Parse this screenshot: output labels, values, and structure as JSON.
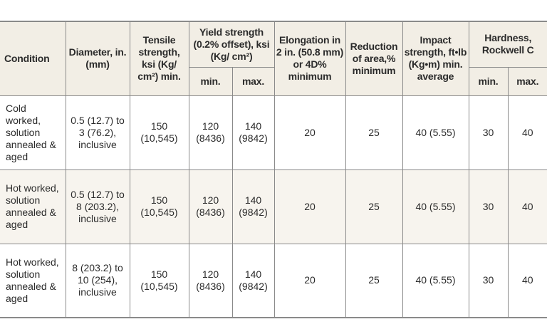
{
  "header": {
    "condition": "Condition",
    "diameter": "Diameter, in.(mm)",
    "tensile": "Tensile strength, ksi (Kg/ cm²) min.",
    "yield": "Yield strength (0.2% offset), ksi (Kg/ cm²)",
    "elongation": "Elongation in 2 in. (50.8 mm) or 4D% minimum",
    "reduction": "Reduction of area,% minimum",
    "impact": "Impact strength, ft•lb (Kg•m) min. average",
    "hardness": "Hardness, Rockwell C",
    "min": "min.",
    "max": "max."
  },
  "rows": [
    {
      "condition": "Cold worked, solution annealed & aged",
      "diameter": "0.5 (12.7) to 3 (76.2), inclusive",
      "tensile": "150 (10,545)",
      "yield_min": "120 (8436)",
      "yield_max": "140 (9842)",
      "elongation": "20",
      "reduction": "25",
      "impact": "40 (5.55)",
      "hard_min": "30",
      "hard_max": "40"
    },
    {
      "condition": "Hot worked, solution annealed & aged",
      "diameter": "0.5 (12.7) to 8 (203.2), inclusive",
      "tensile": "150 (10,545)",
      "yield_min": "120 (8436)",
      "yield_max": "140 (9842)",
      "elongation": "20",
      "reduction": "25",
      "impact": "40 (5.55)",
      "hard_min": "30",
      "hard_max": "40"
    },
    {
      "condition": "Hot worked, solution annealed & aged",
      "diameter": "8 (203.2) to 10 (254), inclusive",
      "tensile": "150 (10,545)",
      "yield_min": "120 (8436)",
      "yield_max": "140 (9842)",
      "elongation": "20",
      "reduction": "25",
      "impact": "40 (5.55)",
      "hard_min": "30",
      "hard_max": "40"
    }
  ]
}
